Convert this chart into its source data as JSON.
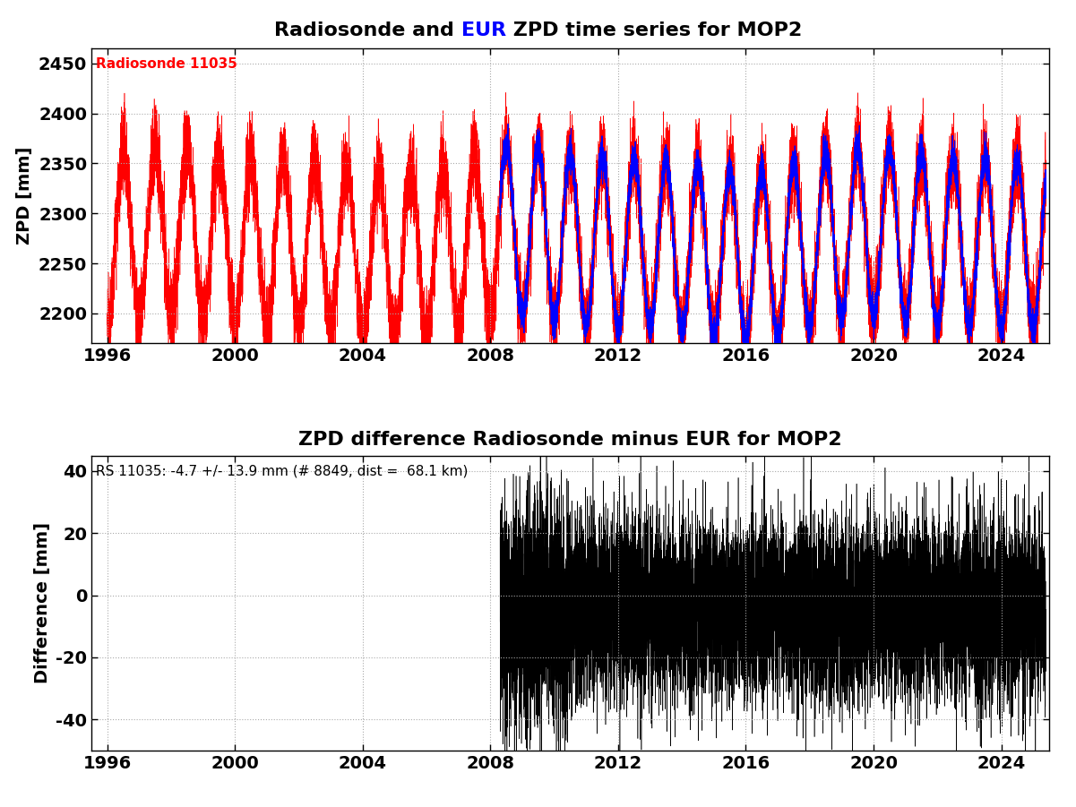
{
  "title1_parts": [
    {
      "text": "Radiosonde and ",
      "color": "black"
    },
    {
      "text": "EUR",
      "color": "blue"
    },
    {
      "text": " ZPD time series for MOP2",
      "color": "black"
    }
  ],
  "title2": "ZPD difference Radiosonde minus EUR for MOP2",
  "ylabel1": "ZPD [mm]",
  "ylabel2": "Difference [mm]",
  "annotation1": "Radiosonde 11035",
  "annotation2": "RS 11035: -4.7 +/- 13.9 mm (# 8849, dist =  68.1 km)",
  "ylim1": [
    2170,
    2465
  ],
  "yticks1": [
    2200,
    2250,
    2300,
    2350,
    2400,
    2450
  ],
  "ylim2": [
    -50,
    45
  ],
  "yticks2": [
    -40,
    -20,
    0,
    20,
    40
  ],
  "xlim": [
    1995.5,
    2025.5
  ],
  "xticks": [
    1996,
    2000,
    2004,
    2008,
    2012,
    2016,
    2020,
    2024
  ],
  "rs_color": "red",
  "epn_color": "blue",
  "diff_color": "black",
  "background_color": "white",
  "grid_color": "#aaaaaa",
  "title_fontsize": 16,
  "label_fontsize": 14,
  "tick_fontsize": 14,
  "annotation_fontsize": 11,
  "rs_start_year": 1996.0,
  "rs_end_year": 2025.4,
  "epn_start_year": 2008.3,
  "epn_end_year": 2025.4,
  "diff_start_year": 2008.3,
  "diff_end_year": 2025.4,
  "zpd_mean": 2270,
  "zpd_seasonal_amp": 85,
  "zpd_noise_high": 18,
  "zpd_noise_low": 8,
  "diff_mean": -4.7,
  "diff_std": 13.9
}
